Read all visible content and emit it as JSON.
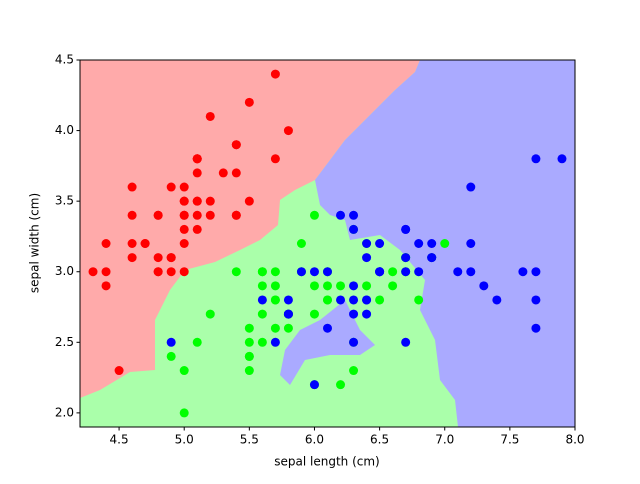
{
  "chart_data": {
    "type": "scatter",
    "xlabel": "sepal length (cm)",
    "ylabel": "sepal width (cm)",
    "xlim": [
      4.2,
      8.0
    ],
    "ylim": [
      1.9,
      4.5
    ],
    "xticks": [
      4.5,
      {
        "value": 5,
        "label": "5.0"
      },
      5.5,
      {
        "value": 6,
        "label": "6.0"
      },
      6.5,
      {
        "value": 7,
        "label": "7.0"
      },
      7.5,
      {
        "value": 8,
        "label": "8.0"
      }
    ],
    "yticks": [
      {
        "value": 2,
        "label": "2.0"
      },
      2.5,
      {
        "value": 3,
        "label": "3.0"
      },
      3.5,
      {
        "value": 4,
        "label": "4.0"
      },
      4.5
    ],
    "series": [
      {
        "color": "#ff0000",
        "x": [
          5.1,
          4.9,
          4.7,
          4.6,
          5.0,
          5.4,
          4.6,
          5.0,
          4.4,
          4.9,
          5.4,
          4.8,
          4.8,
          4.3,
          5.8,
          5.7,
          5.4,
          5.1,
          5.7,
          5.1,
          5.4,
          5.1,
          4.6,
          5.1,
          4.8,
          5.0,
          5.0,
          5.2,
          5.2,
          4.7,
          4.8,
          5.4,
          5.2,
          5.5,
          4.9,
          5.0,
          5.5,
          4.9,
          4.4,
          5.1,
          5.0,
          4.5,
          4.4,
          5.0,
          5.1,
          4.8,
          5.1,
          4.6,
          5.3,
          5.0
        ],
        "values": [
          3.5,
          3.0,
          3.2,
          3.1,
          3.6,
          3.9,
          3.4,
          3.4,
          2.9,
          3.1,
          3.7,
          3.4,
          3.0,
          3.0,
          4.0,
          4.4,
          3.9,
          3.5,
          3.8,
          3.8,
          3.4,
          3.7,
          3.6,
          3.3,
          3.4,
          3.0,
          3.4,
          3.5,
          3.4,
          3.2,
          3.1,
          3.4,
          4.1,
          4.2,
          3.1,
          3.2,
          3.5,
          3.6,
          3.0,
          3.4,
          3.5,
          2.3,
          3.2,
          3.5,
          3.8,
          3.0,
          3.8,
          3.2,
          3.7,
          3.3
        ]
      },
      {
        "color": "#00ff00",
        "x": [
          7.0,
          6.4,
          6.9,
          5.5,
          6.5,
          5.7,
          6.3,
          4.9,
          6.6,
          5.2,
          5.0,
          5.9,
          6.0,
          6.1,
          5.6,
          6.7,
          5.6,
          5.8,
          6.2,
          5.6,
          5.9,
          6.1,
          6.3,
          6.1,
          6.4,
          6.6,
          6.8,
          6.7,
          6.0,
          5.7,
          5.5,
          5.5,
          5.8,
          6.0,
          5.4,
          6.0,
          6.7,
          6.3,
          5.6,
          5.5,
          5.5,
          6.1,
          5.8,
          5.0,
          5.6,
          5.7,
          5.7,
          6.2,
          5.1,
          5.7
        ],
        "values": [
          3.2,
          3.2,
          3.1,
          2.3,
          2.8,
          2.8,
          3.3,
          2.4,
          2.9,
          2.7,
          2.0,
          3.0,
          2.2,
          2.9,
          2.9,
          3.1,
          3.0,
          2.7,
          2.2,
          2.5,
          3.2,
          2.8,
          2.5,
          2.8,
          2.9,
          3.0,
          2.8,
          3.0,
          2.9,
          2.6,
          2.4,
          2.4,
          2.7,
          2.7,
          3.0,
          3.4,
          3.1,
          2.3,
          3.0,
          2.5,
          2.6,
          3.0,
          2.6,
          2.3,
          2.7,
          3.0,
          2.9,
          2.9,
          2.5,
          2.8
        ]
      },
      {
        "color": "#0000ff",
        "x": [
          6.3,
          5.8,
          7.1,
          6.3,
          6.5,
          7.6,
          4.9,
          7.3,
          6.7,
          7.2,
          6.5,
          6.4,
          6.8,
          5.7,
          5.8,
          6.4,
          6.5,
          7.7,
          7.7,
          6.0,
          6.9,
          5.6,
          7.7,
          6.3,
          6.7,
          7.2,
          6.2,
          6.1,
          6.4,
          7.2,
          7.4,
          7.9,
          6.4,
          6.3,
          6.1,
          7.7,
          6.3,
          6.4,
          6.0,
          6.9,
          6.7,
          6.9,
          5.8,
          6.8,
          6.7,
          6.7,
          6.3,
          6.5,
          6.2,
          5.9
        ],
        "values": [
          3.3,
          2.7,
          3.0,
          2.9,
          3.0,
          3.0,
          2.5,
          2.9,
          2.5,
          3.6,
          3.2,
          2.7,
          3.0,
          2.5,
          2.8,
          3.2,
          3.0,
          3.8,
          2.6,
          2.2,
          3.2,
          2.8,
          2.8,
          2.7,
          3.3,
          3.2,
          2.8,
          3.0,
          2.8,
          3.0,
          2.8,
          3.8,
          2.8,
          2.8,
          2.6,
          3.0,
          3.4,
          3.1,
          3.0,
          3.1,
          3.1,
          3.1,
          2.7,
          3.2,
          3.3,
          3.0,
          2.5,
          3.0,
          3.4,
          3.0
        ]
      }
    ]
  }
}
